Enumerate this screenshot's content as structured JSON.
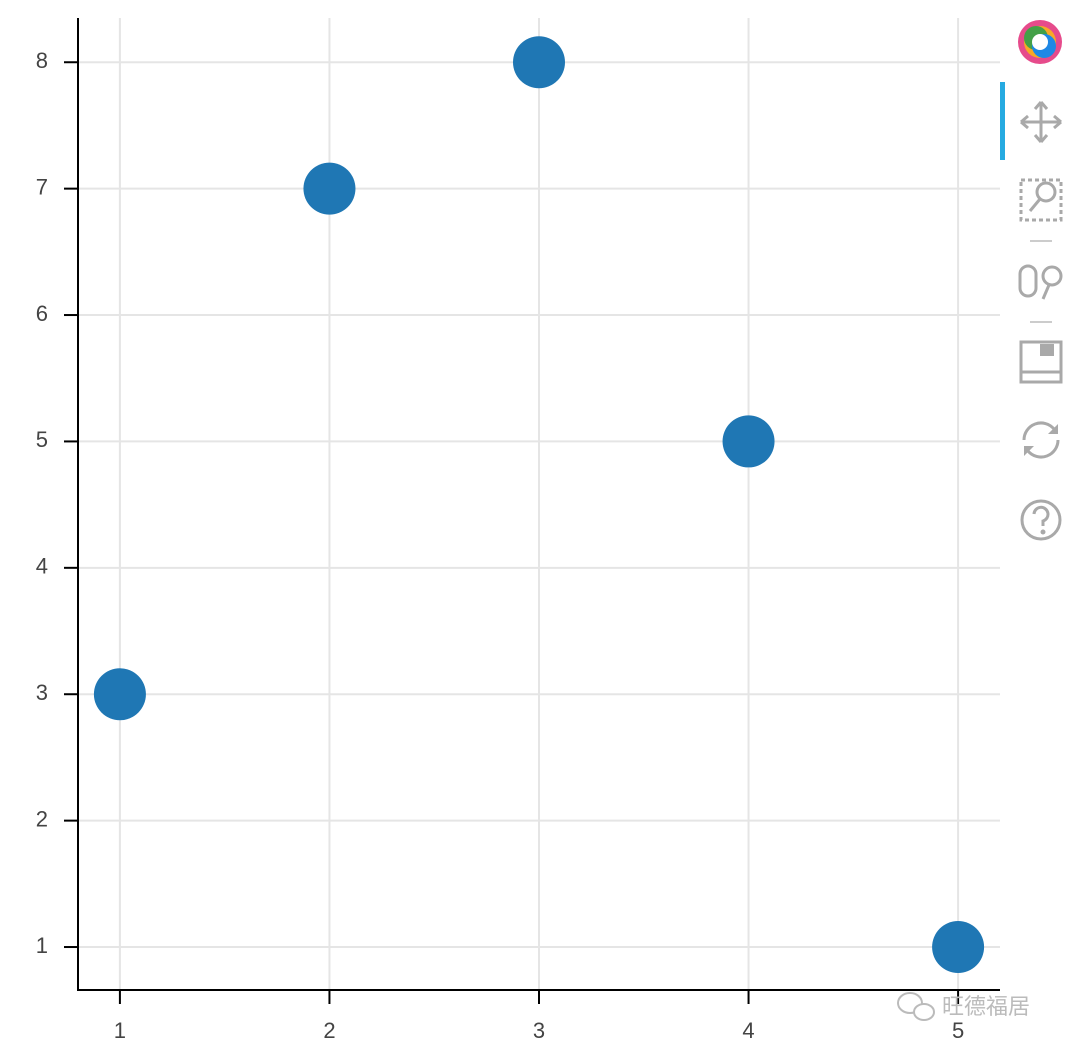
{
  "chart_data": {
    "type": "scatter",
    "x": [
      1,
      2,
      3,
      4,
      5
    ],
    "values": [
      3,
      7,
      8,
      5,
      1
    ],
    "color": "#1f77b4",
    "xlim": [
      0.8,
      5.2
    ],
    "ylim": [
      0.66,
      8.35
    ],
    "xticks": [
      1,
      2,
      3,
      4,
      5
    ],
    "yticks": [
      1,
      2,
      3,
      4,
      5,
      6,
      7,
      8
    ],
    "grid": true,
    "watermark": "旺德福居"
  }
}
